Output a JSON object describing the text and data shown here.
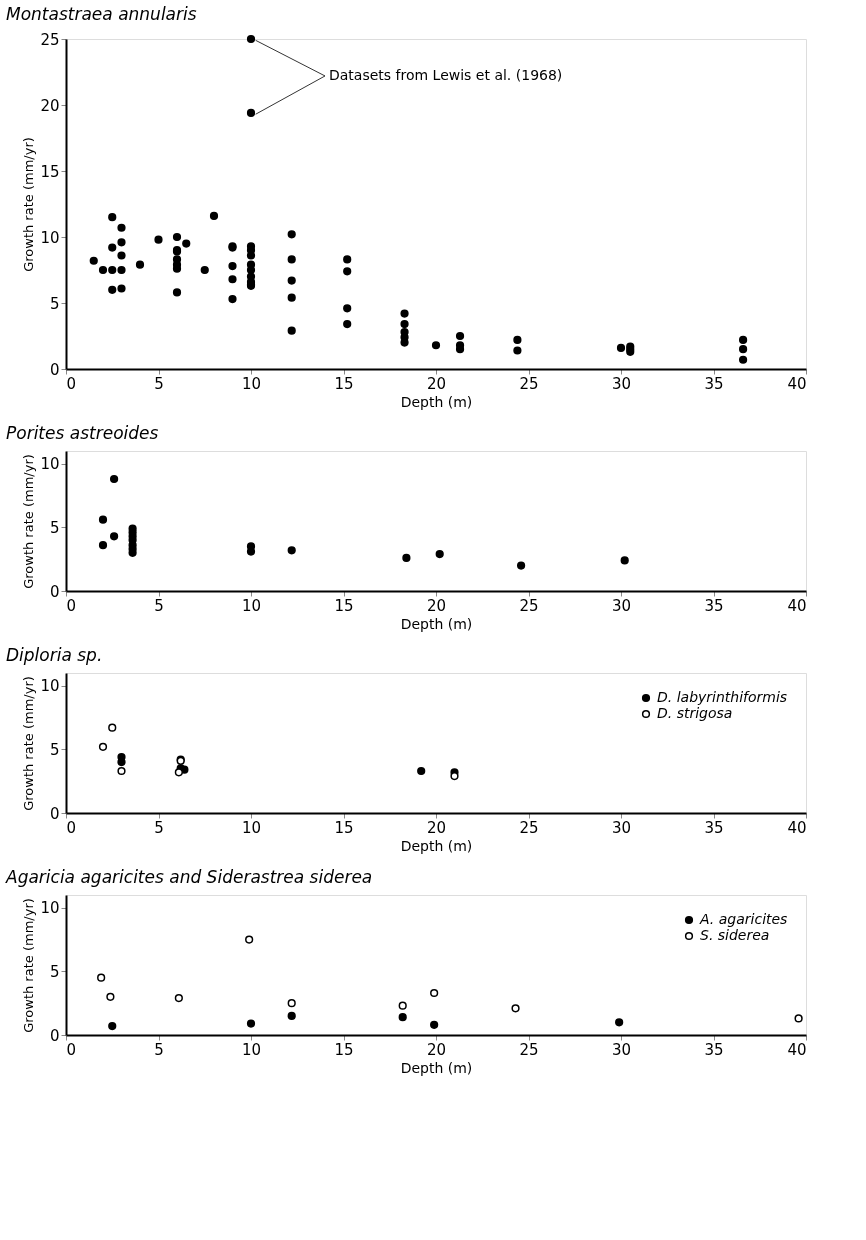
{
  "chart_data": [
    {
      "type": "scatter",
      "title": "Montastraea annularis",
      "xlabel": "Depth (m)",
      "ylabel": "Growth rate (mm/yr)",
      "xlim": [
        0,
        40
      ],
      "xticks": [
        0,
        5,
        10,
        15,
        20,
        25,
        30,
        35,
        40
      ],
      "ylim": [
        0,
        25
      ],
      "yticks": [
        0,
        5,
        10,
        15,
        20,
        25
      ],
      "grid": false,
      "legend": false,
      "marker": "circle",
      "annotations": [
        {
          "text": "Datasets from Lewis et al. (1968)",
          "x": 10,
          "y": 25
        }
      ],
      "series": [
        {
          "color": "#000000",
          "x": [
            1.5,
            2,
            2.5,
            2.5,
            2.5,
            2.5,
            3,
            3,
            3,
            3,
            3,
            4,
            5,
            6,
            6,
            6,
            6,
            6,
            6,
            6,
            6.5,
            7.5,
            8,
            9,
            9,
            9,
            9,
            9,
            10,
            10,
            10,
            10,
            10,
            10,
            10,
            10,
            10,
            10,
            10,
            12.2,
            12.2,
            12.2,
            12.2,
            12.2,
            15.2,
            15.2,
            15.2,
            15.2,
            18.3,
            18.3,
            18.3,
            18.3,
            18.3,
            20,
            21.3,
            21.3,
            21.3,
            24.4,
            24.4,
            30,
            30.5,
            30.5,
            30.5,
            36.6,
            36.6,
            36.6
          ],
          "values": [
            8.2,
            7.5,
            11.5,
            9.2,
            7.5,
            6.0,
            10.7,
            9.6,
            8.6,
            7.5,
            6.1,
            7.9,
            9.8,
            10.0,
            9.0,
            8.9,
            8.3,
            7.9,
            7.6,
            5.8,
            9.5,
            7.5,
            11.6,
            9.3,
            9.2,
            7.8,
            6.8,
            5.3,
            9.3,
            9.0,
            8.6,
            7.9,
            7.5,
            7.0,
            6.6,
            6.4,
            6.3,
            25,
            19.4,
            10.2,
            8.3,
            6.7,
            5.4,
            2.9,
            8.3,
            7.4,
            4.6,
            3.4,
            4.2,
            3.4,
            2.8,
            2.4,
            2.0,
            1.8,
            2.5,
            1.8,
            1.5,
            2.2,
            1.4,
            1.6,
            1.7,
            1.5,
            1.3,
            2.2,
            1.5,
            0.7
          ]
        }
      ]
    },
    {
      "type": "scatter",
      "title": "Porites astreoides",
      "xlabel": "Depth (m)",
      "ylabel": "Growth rate (mm/yr)",
      "xlim": [
        0,
        40
      ],
      "xticks": [
        0,
        5,
        10,
        15,
        20,
        25,
        30,
        35,
        40
      ],
      "ylim": [
        0,
        11
      ],
      "yticks": [
        0,
        5,
        10
      ],
      "grid": false,
      "legend": false,
      "marker": "circle",
      "series": [
        {
          "color": "#000000",
          "x": [
            2,
            2.6,
            2.6,
            2,
            3.6,
            3.6,
            3.6,
            3.6,
            3.6,
            3.6,
            3.6,
            10,
            10,
            12.2,
            18.4,
            20.2,
            24.6,
            30.2
          ],
          "values": [
            5.6,
            8.8,
            4.3,
            3.6,
            4.9,
            4.6,
            4.3,
            4.0,
            3.6,
            3.3,
            3.0,
            3.5,
            3.1,
            3.2,
            2.6,
            2.9,
            2.0,
            2.4
          ]
        }
      ]
    },
    {
      "type": "scatter",
      "title": "Diploria sp.",
      "xlabel": "Depth (m)",
      "ylabel": "Growth rate (mm/yr)",
      "xlim": [
        0,
        40
      ],
      "xticks": [
        0,
        5,
        10,
        15,
        20,
        25,
        30,
        35,
        40
      ],
      "ylim": [
        0,
        11
      ],
      "yticks": [
        0,
        5,
        10
      ],
      "grid": false,
      "legend": "top right",
      "marker": "circle",
      "series": [
        {
          "name": "D. labyrinthiformis",
          "color": "#000000",
          "x": [
            3,
            3,
            6.2,
            6.4,
            19.2,
            21
          ],
          "values": [
            4.4,
            4.0,
            3.5,
            3.4,
            3.3,
            3.2
          ]
        },
        {
          "name": "D. strigosa",
          "color": "#ffffff",
          "x": [
            2,
            2.5,
            3,
            6.2,
            6.2,
            6.1,
            21
          ],
          "values": [
            5.2,
            6.7,
            3.3,
            4.2,
            4.1,
            3.2,
            2.9
          ]
        }
      ]
    },
    {
      "type": "scatter",
      "title": "Agaricia agaricites and Siderastrea siderea",
      "xlabel": "Depth (m)",
      "ylabel": "Growth rate (mm/yr)",
      "xlim": [
        0,
        40
      ],
      "xticks": [
        0,
        5,
        10,
        15,
        20,
        25,
        30,
        35,
        40
      ],
      "ylim": [
        0,
        11
      ],
      "yticks": [
        0,
        5,
        10
      ],
      "grid": false,
      "legend": "top right",
      "marker": "circle",
      "series": [
        {
          "name": "A. agaricites",
          "color": "#000000",
          "x": [
            2.5,
            10,
            12.2,
            18.2,
            19.9,
            29.9
          ],
          "values": [
            0.7,
            0.9,
            1.5,
            1.4,
            0.8,
            1.0
          ]
        },
        {
          "name": "S. siderea",
          "color": "#ffffff",
          "x": [
            1.9,
            2.4,
            6.1,
            9.9,
            12.2,
            18.2,
            19.9,
            24.3,
            39.6
          ],
          "values": [
            4.5,
            3.0,
            2.9,
            7.5,
            2.5,
            2.3,
            3.3,
            2.1,
            1.3
          ]
        }
      ]
    }
  ]
}
